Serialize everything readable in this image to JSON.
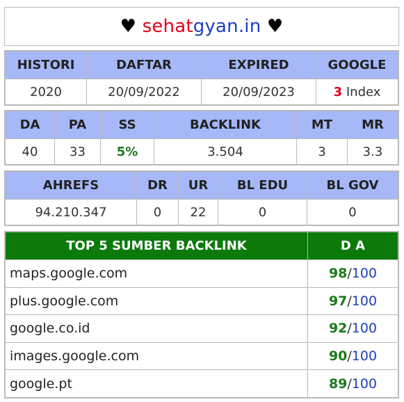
{
  "title": {
    "heart_left": "♥",
    "part1": "sehat",
    "part2": "gyan.in",
    "heart_right": "♥"
  },
  "colors": {
    "header_blue": "#a6b8f7",
    "header_green": "#0b7a0b",
    "red": "#e0001b",
    "blue": "#1f3fbf",
    "green": "#1a7a1a"
  },
  "table1": {
    "headers": [
      "HISTORI",
      "DAFTAR",
      "EXPIRED",
      "GOOGLE"
    ],
    "histori": "2020",
    "daftar": "20/09/2022",
    "expired": "20/09/2023",
    "google_count": "3",
    "google_label": " Index"
  },
  "table2": {
    "headers": [
      "DA",
      "PA",
      "SS",
      "BACKLINK",
      "MT",
      "MR"
    ],
    "values": [
      "40",
      "33",
      "5%",
      "3.504",
      "3",
      "3.3"
    ]
  },
  "table3": {
    "headers": [
      "AHREFS",
      "DR",
      "UR",
      "BL EDU",
      "BL GOV"
    ],
    "values": [
      "94.210.347",
      "0",
      "22",
      "0",
      "0"
    ]
  },
  "table4": {
    "header_site": "TOP 5 SUMBER BACKLINK",
    "header_da": "D A",
    "rows": [
      {
        "site": "maps.google.com",
        "score": "98",
        "slash": "/",
        "max": "100"
      },
      {
        "site": "plus.google.com",
        "score": "97",
        "slash": "/",
        "max": "100"
      },
      {
        "site": "google.co.id",
        "score": "92",
        "slash": "/",
        "max": "100"
      },
      {
        "site": "images.google.com",
        "score": "90",
        "slash": "/",
        "max": "100"
      },
      {
        "site": "google.pt",
        "score": "89",
        "slash": "/",
        "max": "100"
      }
    ]
  }
}
